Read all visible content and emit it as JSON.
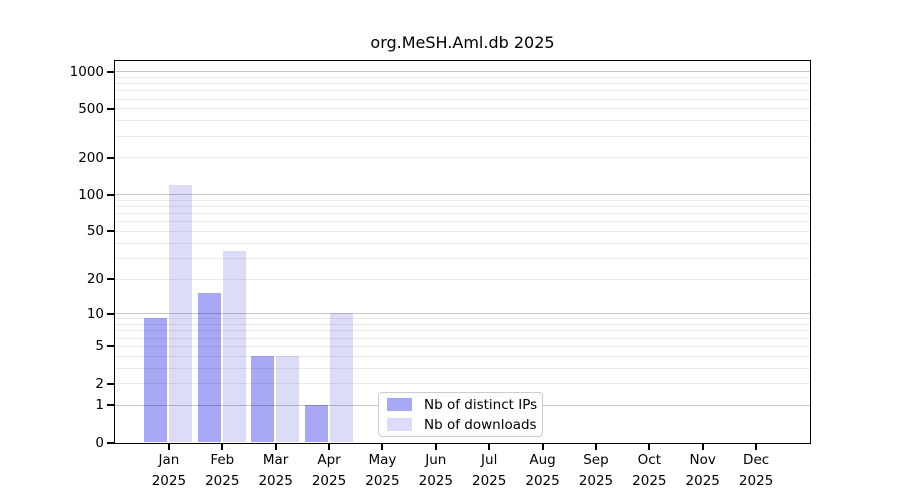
{
  "title": "org.MeSH.Aml.db 2025",
  "chart_data": {
    "type": "bar",
    "title": "org.MeSH.Aml.db 2025",
    "x": {
      "months": [
        "Jan",
        "Feb",
        "Mar",
        "Apr",
        "May",
        "Jun",
        "Jul",
        "Aug",
        "Sep",
        "Oct",
        "Nov",
        "Dec"
      ],
      "year": "2025"
    },
    "y": {
      "scale": "log1p",
      "tick_labels": [
        "0",
        "1",
        "2",
        "5",
        "10",
        "20",
        "50",
        "100",
        "200",
        "500",
        "1000"
      ],
      "tick_values": [
        0,
        1,
        2,
        5,
        10,
        20,
        50,
        100,
        200,
        500,
        1000
      ],
      "major_grid_values": [
        1,
        10,
        100,
        1000
      ],
      "ylim": [
        0,
        1280
      ],
      "grid": "horizontal-only"
    },
    "series": [
      {
        "name": "Nb of distinct IPs",
        "color": "#a8a8f5",
        "values": [
          9,
          15,
          4,
          1,
          null,
          null,
          null,
          null,
          null,
          null,
          null,
          null
        ]
      },
      {
        "name": "Nb of downloads",
        "color": "#dcdcf9",
        "values": [
          120,
          34,
          4,
          10,
          null,
          null,
          null,
          null,
          null,
          null,
          null,
          null
        ]
      }
    ],
    "legend": {
      "position": "inside-bottom-center"
    }
  },
  "colors": {
    "background": "#ffffff",
    "text": "#000000",
    "spine": "#000000",
    "grid_major": "rgba(0,0,0,0.215)",
    "grid_minor": "rgba(0,0,0,0.075)",
    "legend_border": "#cccccc"
  }
}
